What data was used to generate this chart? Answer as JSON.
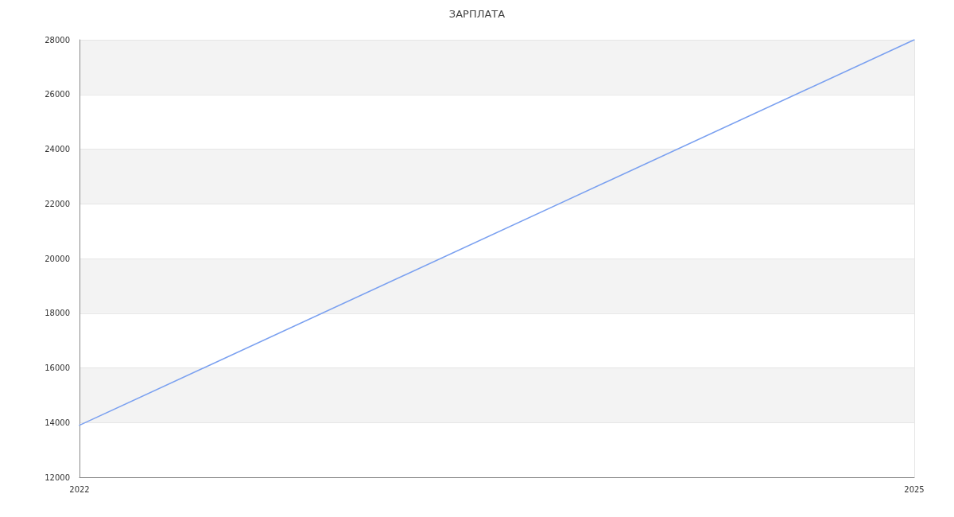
{
  "chart_data": {
    "type": "line",
    "title": "ЗАРПЛАТА",
    "x": [
      "2022",
      "2025"
    ],
    "values": [
      13900,
      28000
    ],
    "color": "#7aa0f0",
    "xlim": [
      "2022",
      "2025"
    ],
    "xticks": [
      "2022",
      "2025"
    ],
    "ylim": [
      12000,
      28000
    ],
    "yticks": [
      12000,
      14000,
      16000,
      18000,
      20000,
      22000,
      24000,
      26000,
      28000
    ],
    "grid": true,
    "marker": "none"
  }
}
